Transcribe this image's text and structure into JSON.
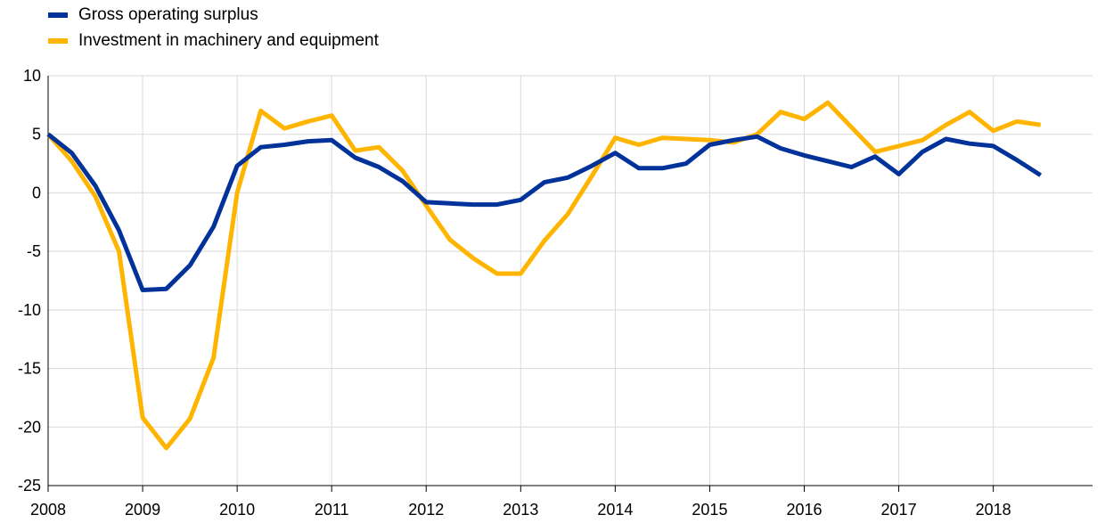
{
  "chart_data": {
    "type": "line",
    "title": "",
    "xlabel": "",
    "ylabel": "",
    "ylim": [
      -25,
      10
    ],
    "yticks": [
      10,
      5,
      0,
      -5,
      -10,
      -15,
      -20,
      -25
    ],
    "xlim": [
      2008,
      2019.05
    ],
    "xticks": [
      2008,
      2009,
      2010,
      2011,
      2012,
      2013,
      2014,
      2015,
      2016,
      2017,
      2018
    ],
    "grid": "horizontal and vertical",
    "legend_position": "top-left",
    "series": [
      {
        "name": "Gross operating surplus",
        "color": "#003299",
        "x": [
          2008,
          2008.25,
          2008.5,
          2008.75,
          2009,
          2009.25,
          2009.5,
          2009.75,
          2010,
          2010.25,
          2010.5,
          2010.75,
          2011,
          2011.25,
          2011.5,
          2011.75,
          2012,
          2012.25,
          2012.5,
          2012.75,
          2013,
          2013.25,
          2013.5,
          2013.75,
          2014,
          2014.25,
          2014.5,
          2014.75,
          2015,
          2015.25,
          2015.5,
          2015.75,
          2016,
          2016.25,
          2016.5,
          2016.75,
          2017,
          2017.25,
          2017.5,
          2017.75,
          2018,
          2018.25,
          2018.5
        ],
        "values": [
          5.0,
          3.4,
          0.6,
          -3.2,
          -8.3,
          -8.2,
          -6.2,
          -2.9,
          2.3,
          3.9,
          4.1,
          4.4,
          4.5,
          3.0,
          2.2,
          1.0,
          -0.8,
          -0.9,
          -1.0,
          -1.0,
          -0.6,
          0.9,
          1.3,
          2.3,
          3.4,
          2.1,
          2.1,
          2.5,
          4.1,
          4.5,
          4.8,
          3.8,
          3.2,
          2.7,
          2.2,
          3.1,
          1.6,
          3.5,
          4.6,
          4.2,
          4.0,
          2.8,
          1.5
        ]
      },
      {
        "name": "Investment in machinery and equipment",
        "color": "#FFB400",
        "x": [
          2008,
          2008.25,
          2008.5,
          2008.75,
          2009,
          2009.25,
          2009.5,
          2009.75,
          2010,
          2010.25,
          2010.5,
          2010.75,
          2011,
          2011.25,
          2011.5,
          2011.75,
          2012,
          2012.25,
          2012.5,
          2012.75,
          2013,
          2013.25,
          2013.5,
          2013.75,
          2014,
          2014.25,
          2014.5,
          2014.75,
          2015,
          2015.25,
          2015.5,
          2015.75,
          2016,
          2016.25,
          2016.5,
          2016.75,
          2017,
          2017.25,
          2017.5,
          2017.75,
          2018,
          2018.25,
          2018.5
        ],
        "values": [
          5.0,
          2.7,
          -0.3,
          -5.0,
          -19.2,
          -21.8,
          -19.3,
          -14.1,
          0.0,
          7.0,
          5.5,
          6.1,
          6.6,
          3.6,
          3.9,
          1.9,
          -1.1,
          -4.0,
          -5.6,
          -6.9,
          -6.9,
          -4.1,
          -1.8,
          1.4,
          4.7,
          4.1,
          4.7,
          4.6,
          4.5,
          4.3,
          5.0,
          6.9,
          6.3,
          7.7,
          5.6,
          3.5,
          4.0,
          4.5,
          5.8,
          6.9,
          5.3,
          6.1,
          5.8
        ]
      }
    ],
    "yticklabels": [
      "10",
      "5",
      "0",
      "-5",
      "-10",
      "-15",
      "-20",
      "-25"
    ],
    "xticklabels": [
      "2008",
      "2009",
      "2010",
      "2011",
      "2012",
      "2013",
      "2014",
      "2015",
      "2016",
      "2017",
      "2018"
    ]
  },
  "legend": {
    "items": [
      {
        "label": "Gross operating surplus",
        "color": "#003299"
      },
      {
        "label": "Investment in machinery and equipment",
        "color": "#FFB400"
      }
    ]
  }
}
